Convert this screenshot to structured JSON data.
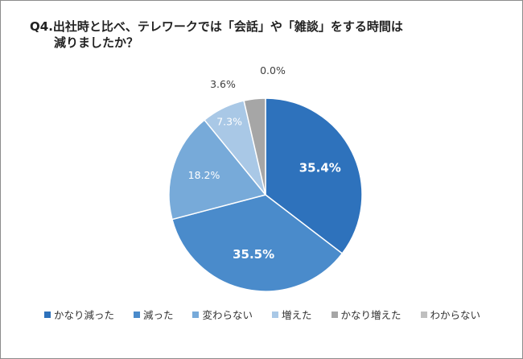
{
  "chart_data": {
    "type": "pie",
    "title_line1": "Q4.出社時と比べ、テレワークでは「会話」や「雑談」をする時間は",
    "title_line2": "減りましたか？",
    "categories": [
      "かなり減った",
      "減った",
      "変わらない",
      "増えた",
      "かなり増えた",
      "わからない"
    ],
    "values": [
      35.4,
      35.5,
      18.2,
      7.3,
      3.6,
      0.0
    ],
    "labels": [
      "35.4%",
      "35.5%",
      "18.2%",
      "7.3%",
      "3.6%",
      "0.0%"
    ],
    "colors": [
      "#2e72bc",
      "#4a8bcb",
      "#77aad9",
      "#a9c8e6",
      "#a6a6a6",
      "#bfbfbf"
    ],
    "legend_position": "bottom"
  }
}
